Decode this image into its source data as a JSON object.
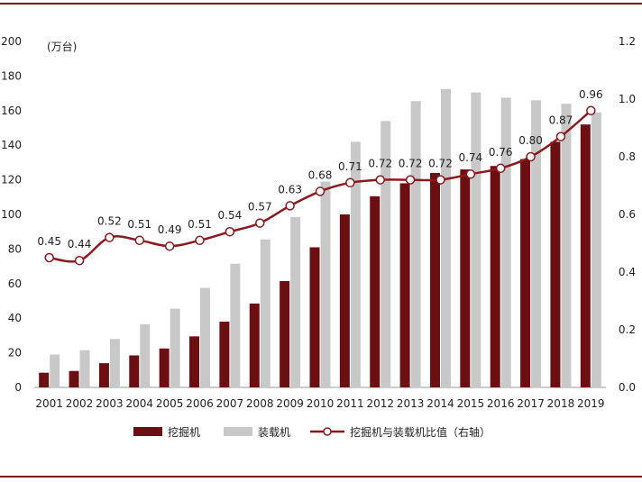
{
  "chart_data": {
    "type": "bar",
    "categories": [
      "2001",
      "2002",
      "2003",
      "2004",
      "2005",
      "2006",
      "2007",
      "2008",
      "2009",
      "2010",
      "2011",
      "2012",
      "2013",
      "2014",
      "2015",
      "2016",
      "2017",
      "2018",
      "2019"
    ],
    "series": [
      {
        "name": "挖掘机",
        "type": "bar",
        "axis": "left",
        "color": "#6b0f12",
        "values": [
          8.5,
          9.5,
          14,
          18.5,
          22.5,
          29.5,
          38,
          48.5,
          61.5,
          81,
          100,
          110.5,
          118,
          124,
          126,
          128,
          132,
          142,
          152
        ]
      },
      {
        "name": "装载机",
        "type": "bar",
        "axis": "left",
        "color": "#c8c8c8",
        "values": [
          19,
          21.5,
          28,
          36.5,
          45.5,
          57.5,
          71.5,
          85.5,
          98.5,
          119,
          142,
          154,
          165.5,
          172.5,
          170.5,
          167.5,
          166,
          164,
          159
        ]
      },
      {
        "name": "挖掘机与装载机比值（右轴）",
        "type": "line",
        "axis": "right",
        "color": "#8b1a1e",
        "values": [
          0.45,
          0.44,
          0.52,
          0.51,
          0.49,
          0.51,
          0.54,
          0.57,
          0.63,
          0.68,
          0.71,
          0.72,
          0.72,
          0.72,
          0.74,
          0.76,
          0.8,
          0.87,
          0.96
        ]
      }
    ],
    "ratio_labels": [
      "0.45",
      "0.44",
      "0.52",
      "0.51",
      "0.49",
      "0.51",
      "0.54",
      "0.57",
      "0.63",
      "0.68",
      "0.71",
      "0.72",
      "0.72",
      "0.72",
      "0.74",
      "0.76",
      "0.80",
      "0.87",
      "0.96"
    ],
    "left_axis": {
      "unit": "(万台)",
      "ylim": [
        0,
        200
      ],
      "ticks": [
        "0",
        "20",
        "40",
        "60",
        "80",
        "100",
        "120",
        "140",
        "160",
        "180",
        "200"
      ]
    },
    "right_axis": {
      "ylim": [
        0,
        1.2
      ],
      "ticks": [
        "0.0",
        "0.2",
        "0.4",
        "0.6",
        "0.8",
        "1.0",
        "1.2"
      ]
    },
    "grid": false,
    "legend_position": "bottom"
  }
}
